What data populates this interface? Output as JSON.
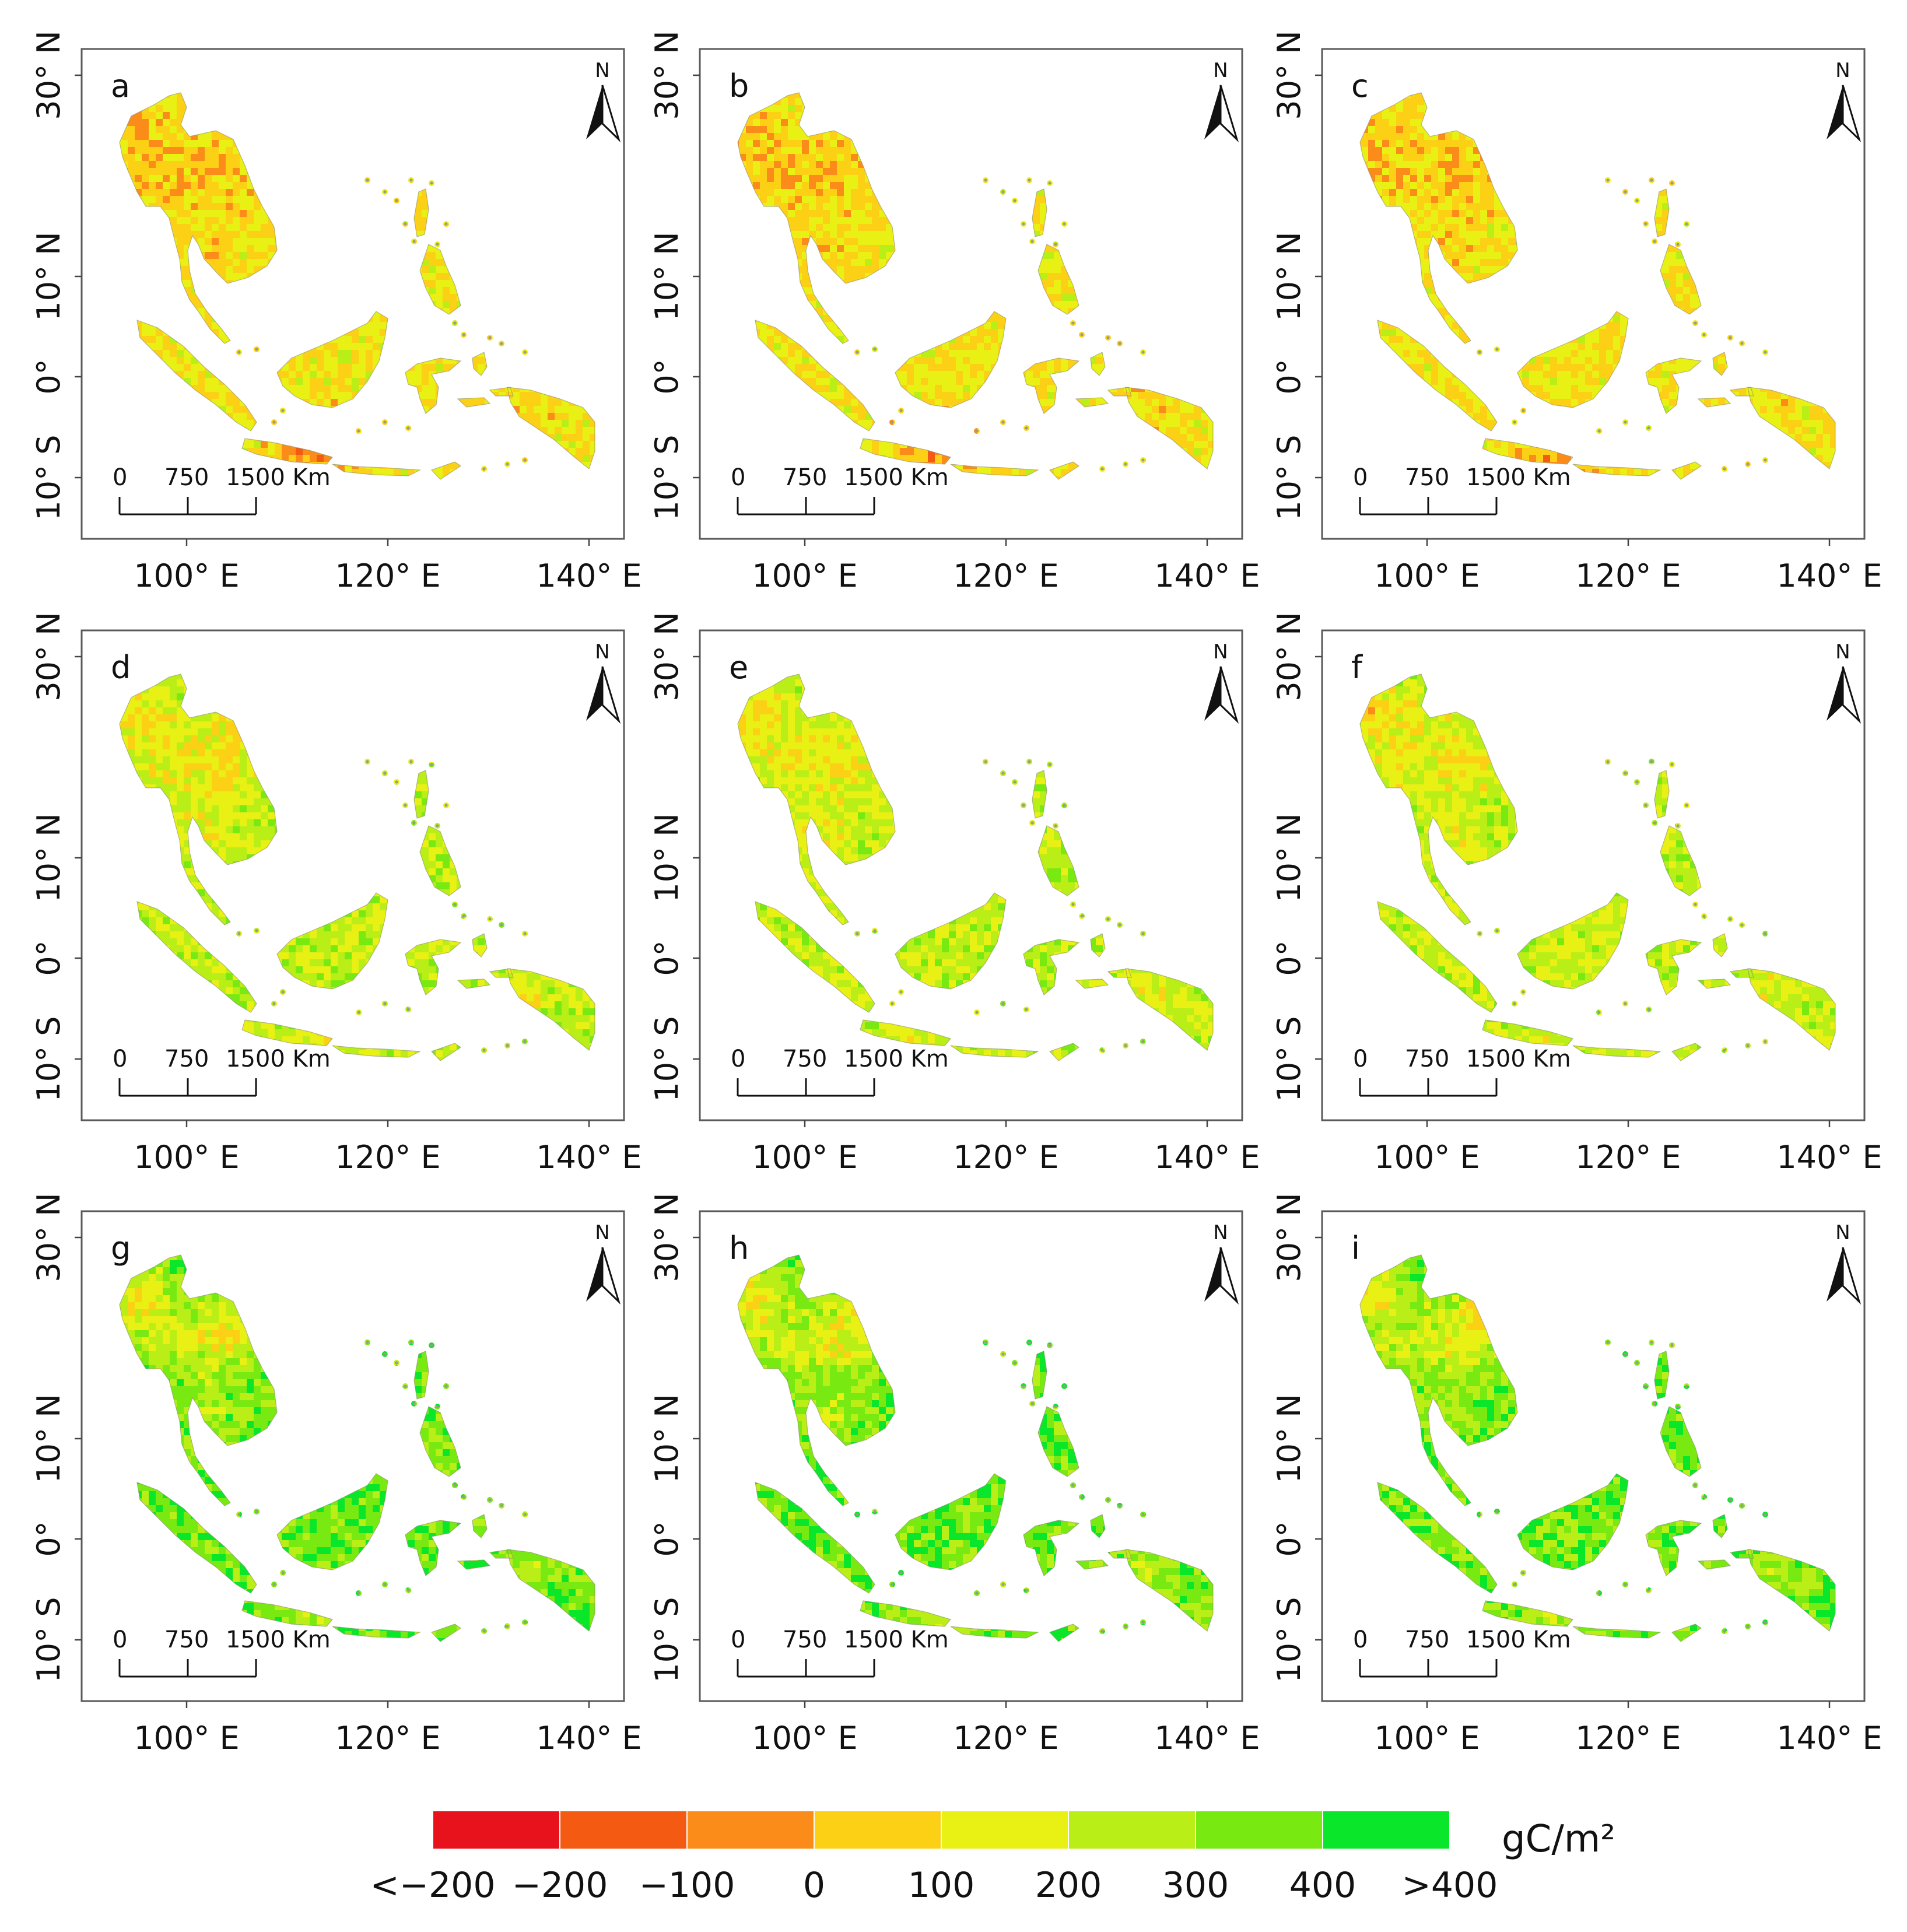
{
  "panels": [
    {
      "id": "a",
      "label": "a"
    },
    {
      "id": "b",
      "label": "b"
    },
    {
      "id": "c",
      "label": "c"
    },
    {
      "id": "d",
      "label": "d"
    },
    {
      "id": "e",
      "label": "e"
    },
    {
      "id": "f",
      "label": "f"
    },
    {
      "id": "g",
      "label": "g"
    },
    {
      "id": "h",
      "label": "h"
    },
    {
      "id": "i",
      "label": "i"
    }
  ],
  "latitude_labels": [
    "30° N",
    "10° N",
    "0°",
    "10° S"
  ],
  "longitude_labels": [
    "100° E",
    "120° E",
    "140° E"
  ],
  "north_arrow_label": "N",
  "scale_bar": {
    "ticks": [
      "0",
      "750",
      "1500 Km"
    ]
  },
  "legend": {
    "unit": "gC/m²",
    "labels": [
      "<−200",
      "−200",
      "−100",
      "0",
      "100",
      "200",
      "300",
      "400",
      ">400"
    ],
    "colors": [
      "#e8121c",
      "#f55a12",
      "#fb8c19",
      "#fcd015",
      "#e8f014",
      "#b9ee17",
      "#78ea12",
      "#0ae62a"
    ]
  },
  "palette": {
    "red": "#e8121c",
    "orange_red": "#f55a12",
    "orange": "#fb8c19",
    "yellow": "#fcd015",
    "yellow_green": "#e8f014",
    "light_green": "#b9ee17",
    "green": "#78ea12",
    "bright_green": "#0ae62a"
  }
}
